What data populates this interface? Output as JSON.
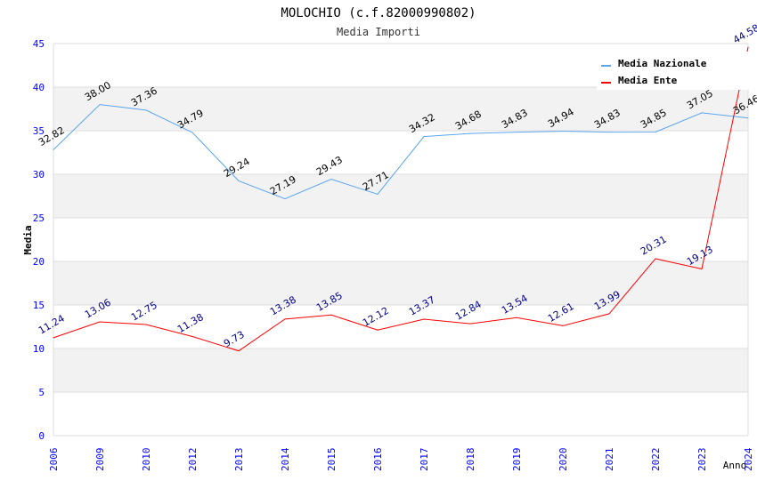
{
  "chart_data": {
    "type": "line",
    "title": "MOLOCHIO (c.f.82000990802)",
    "subtitle": "Media Importi",
    "xlabel": "Anno",
    "ylabel": "Media",
    "ylim": [
      0,
      45
    ],
    "yticks": [
      0,
      5,
      10,
      15,
      20,
      25,
      30,
      35,
      40,
      45
    ],
    "grid": true,
    "legend_position": "top-right",
    "categories": [
      "2006",
      "2009",
      "2010",
      "2012",
      "2013",
      "2014",
      "2015",
      "2016",
      "2017",
      "2018",
      "2019",
      "2020",
      "2021",
      "2022",
      "2023",
      "2024"
    ],
    "series": [
      {
        "name": "Media Nazionale",
        "color": "#5aa5f0",
        "label_color": "#000000",
        "values": [
          32.82,
          38.0,
          37.36,
          34.79,
          29.24,
          27.19,
          29.43,
          27.71,
          34.32,
          34.68,
          34.83,
          34.94,
          34.83,
          34.85,
          37.05,
          36.46
        ],
        "labels": [
          "32.82",
          "38.00",
          "37.36",
          "34.79",
          "29.24",
          "27.19",
          "29.43",
          "27.71",
          "34.32",
          "34.68",
          "34.83",
          "34.94",
          "34.83",
          "34.85",
          "37.05",
          "36.46"
        ]
      },
      {
        "name": "Media Ente",
        "color": "#ff0000",
        "label_color": "#00008b",
        "values": [
          11.24,
          13.06,
          12.75,
          11.38,
          9.73,
          13.38,
          13.85,
          12.12,
          13.37,
          12.84,
          13.54,
          12.61,
          13.99,
          20.31,
          19.13,
          44.58
        ],
        "labels": [
          "11.24",
          "13.06",
          "12.75",
          "11.38",
          "9.73",
          "13.38",
          "13.85",
          "12.12",
          "13.37",
          "12.84",
          "13.54",
          "12.61",
          "13.99",
          "20.31",
          "19.13",
          "44.58"
        ]
      }
    ]
  }
}
